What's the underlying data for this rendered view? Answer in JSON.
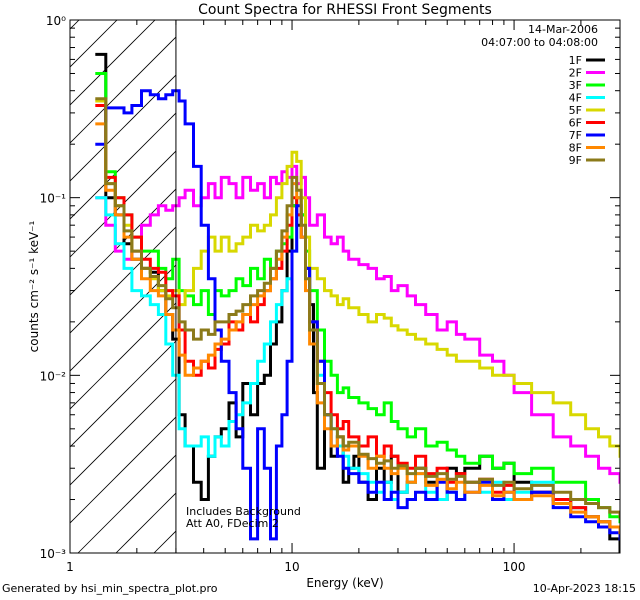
{
  "chart_data": {
    "type": "line",
    "title": "Count Spectra for RHESSI Front Segments",
    "xlabel": "Energy (keV)",
    "ylabel": "counts cm⁻² s⁻¹ keV⁻¹",
    "x_scale": "log",
    "y_scale": "log",
    "xlim": [
      1,
      300
    ],
    "ylim": [
      0.001,
      1
    ],
    "x_ticks": [
      {
        "v": 1,
        "label": "1"
      },
      {
        "v": 10,
        "label": "10"
      },
      {
        "v": 100,
        "label": "100"
      }
    ],
    "y_ticks": [
      {
        "v": 1,
        "label": "10⁰"
      },
      {
        "v": 0.1,
        "label": "10⁻¹"
      },
      {
        "v": 0.01,
        "label": "10⁻²"
      },
      {
        "v": 0.001,
        "label": "10⁻³"
      }
    ],
    "date_text": "14-Mar-2006",
    "time_range_text": "04:07:00 to 04:08:00",
    "legend_placement": "top-right",
    "excluded_region": {
      "x_from": 1,
      "x_to": 3
    },
    "annotations": [
      "Includes Background",
      "Att A0, FDecim 2"
    ],
    "series": [
      {
        "name": "1F",
        "color": "#000000",
        "x": [
          1.3,
          1.45,
          1.6,
          1.75,
          1.9,
          2.1,
          2.3,
          2.5,
          2.7,
          2.9,
          3.1,
          3.3,
          3.6,
          3.9,
          4.2,
          4.5,
          4.8,
          5.2,
          5.6,
          6,
          6.5,
          7,
          7.5,
          8,
          8.5,
          9,
          9.5,
          10,
          10.5,
          11,
          11.5,
          12,
          12.5,
          13,
          14,
          15,
          16,
          17,
          18,
          19,
          20,
          22,
          24,
          26,
          28,
          30,
          33,
          36,
          40,
          45,
          50,
          55,
          60,
          70,
          80,
          90,
          100,
          120,
          150,
          180,
          210,
          240,
          270,
          300
        ],
        "y": [
          0.64,
          0.1,
          0.08,
          0.055,
          0.045,
          0.04,
          0.038,
          0.03,
          0.022,
          0.016,
          0.006,
          0.004,
          0.0025,
          0.002,
          0.0035,
          0.0045,
          0.005,
          0.007,
          0.0045,
          0.009,
          0.006,
          0.009,
          0.01,
          0.015,
          0.02,
          0.03,
          0.05,
          0.09,
          0.07,
          0.08,
          0.04,
          0.025,
          0.008,
          0.003,
          0.006,
          0.0035,
          0.0045,
          0.0025,
          0.003,
          0.0035,
          0.0025,
          0.002,
          0.003,
          0.0025,
          0.0035,
          0.0022,
          0.0025,
          0.003,
          0.0025,
          0.002,
          0.003,
          0.0028,
          0.003,
          0.0035,
          0.003,
          0.0032,
          0.0025,
          0.0022,
          0.002,
          0.0018,
          0.0016,
          0.0015,
          0.0012,
          0.001
        ]
      },
      {
        "name": "2F",
        "color": "#ff00ff",
        "x": [
          1.3,
          1.45,
          1.6,
          1.75,
          1.9,
          2.1,
          2.3,
          2.5,
          2.7,
          2.9,
          3.1,
          3.3,
          3.6,
          3.9,
          4.2,
          4.5,
          4.8,
          5.2,
          5.6,
          6,
          6.5,
          7,
          7.5,
          8,
          8.5,
          9,
          9.5,
          10,
          10.5,
          11,
          11.5,
          12,
          13,
          14,
          15,
          16,
          17,
          18,
          20,
          22,
          24,
          26,
          28,
          30,
          33,
          36,
          40,
          45,
          50,
          55,
          60,
          70,
          80,
          90,
          100,
          120,
          150,
          180,
          210,
          240,
          270,
          300
        ],
        "y": [
          0.1,
          0.07,
          0.05,
          0.045,
          0.05,
          0.07,
          0.08,
          0.09,
          0.085,
          0.09,
          0.1,
          0.11,
          0.09,
          0.1,
          0.12,
          0.1,
          0.13,
          0.12,
          0.1,
          0.13,
          0.11,
          0.12,
          0.1,
          0.13,
          0.12,
          0.14,
          0.13,
          0.15,
          0.12,
          0.13,
          0.1,
          0.07,
          0.08,
          0.06,
          0.055,
          0.06,
          0.05,
          0.045,
          0.042,
          0.04,
          0.035,
          0.036,
          0.03,
          0.032,
          0.028,
          0.025,
          0.022,
          0.018,
          0.02,
          0.017,
          0.016,
          0.013,
          0.012,
          0.01,
          0.008,
          0.006,
          0.0045,
          0.004,
          0.0035,
          0.003,
          0.0028,
          0.0025
        ]
      },
      {
        "name": "3F",
        "color": "#00ff00",
        "x": [
          1.3,
          1.45,
          1.6,
          1.75,
          1.9,
          2.1,
          2.3,
          2.5,
          2.7,
          2.9,
          3.1,
          3.3,
          3.6,
          3.9,
          4.2,
          4.5,
          4.8,
          5.2,
          5.6,
          6,
          6.5,
          7,
          7.5,
          8,
          8.5,
          9,
          9.5,
          10,
          10.5,
          11,
          11.5,
          12,
          13,
          14,
          15,
          16,
          17,
          18,
          20,
          22,
          24,
          26,
          28,
          30,
          33,
          36,
          40,
          45,
          50,
          55,
          60,
          70,
          80,
          90,
          100,
          120,
          150,
          180,
          210,
          240,
          270,
          300
        ],
        "y": [
          0.5,
          0.14,
          0.1,
          0.08,
          0.06,
          0.05,
          0.05,
          0.04,
          0.035,
          0.045,
          0.03,
          0.028,
          0.025,
          0.03,
          0.022,
          0.03,
          0.028,
          0.03,
          0.035,
          0.032,
          0.04,
          0.035,
          0.045,
          0.04,
          0.05,
          0.055,
          0.06,
          0.09,
          0.1,
          0.08,
          0.05,
          0.03,
          0.018,
          0.012,
          0.01,
          0.008,
          0.0085,
          0.0075,
          0.007,
          0.0065,
          0.006,
          0.007,
          0.0055,
          0.005,
          0.0045,
          0.005,
          0.004,
          0.0042,
          0.0038,
          0.0035,
          0.0032,
          0.0035,
          0.003,
          0.0032,
          0.0028,
          0.003,
          0.0025,
          0.0025,
          0.002,
          0.0018,
          0.0016,
          0.0015
        ]
      },
      {
        "name": "4F",
        "color": "#00ffff",
        "x": [
          1.3,
          1.45,
          1.6,
          1.75,
          1.9,
          2.1,
          2.3,
          2.5,
          2.7,
          2.9,
          3.1,
          3.3,
          3.6,
          3.9,
          4.2,
          4.5,
          4.8,
          5.2,
          5.6,
          6,
          6.5,
          7,
          7.5,
          8,
          8.5,
          9,
          9.5,
          10,
          10.5,
          11,
          11.5,
          12,
          13,
          14,
          15,
          16,
          17,
          18,
          20,
          22,
          24,
          26,
          28,
          30,
          33,
          36,
          40,
          45,
          50,
          55,
          60,
          70,
          80,
          90,
          100,
          120,
          150,
          180,
          210,
          240,
          270,
          300
        ],
        "y": [
          0.1,
          0.08,
          0.055,
          0.04,
          0.03,
          0.028,
          0.025,
          0.022,
          0.015,
          0.01,
          0.005,
          0.004,
          0.004,
          0.0045,
          0.0035,
          0.0045,
          0.004,
          0.0055,
          0.006,
          0.007,
          0.009,
          0.012,
          0.015,
          0.02,
          0.025,
          0.03,
          0.035,
          0.05,
          0.08,
          0.06,
          0.04,
          0.02,
          0.01,
          0.006,
          0.005,
          0.004,
          0.0035,
          0.003,
          0.0028,
          0.0025,
          0.0022,
          0.0025,
          0.002,
          0.0022,
          0.0025,
          0.0028,
          0.0022,
          0.002,
          0.0022,
          0.002,
          0.0025,
          0.0022,
          0.0025,
          0.002,
          0.0022,
          0.0025,
          0.002,
          0.0018,
          0.0016,
          0.0015,
          0.0014,
          0.0013
        ]
      },
      {
        "name": "5F",
        "color": "#d8d800",
        "x": [
          1.3,
          1.45,
          1.6,
          1.75,
          1.9,
          2.1,
          2.3,
          2.5,
          2.7,
          2.9,
          3.1,
          3.3,
          3.6,
          3.9,
          4.2,
          4.5,
          4.8,
          5.2,
          5.6,
          6,
          6.5,
          7,
          7.5,
          8,
          8.5,
          9,
          9.5,
          10,
          10.5,
          11,
          11.5,
          12,
          13,
          14,
          15,
          16,
          17,
          18,
          20,
          22,
          24,
          26,
          28,
          30,
          33,
          36,
          40,
          45,
          50,
          55,
          60,
          70,
          80,
          90,
          100,
          120,
          150,
          180,
          210,
          240,
          270,
          300
        ],
        "y": [
          0.35,
          0.12,
          0.09,
          0.07,
          0.05,
          0.04,
          0.035,
          0.03,
          0.028,
          0.03,
          0.025,
          0.03,
          0.04,
          0.05,
          0.06,
          0.05,
          0.06,
          0.05,
          0.055,
          0.06,
          0.07,
          0.065,
          0.07,
          0.08,
          0.1,
          0.12,
          0.15,
          0.18,
          0.16,
          0.1,
          0.06,
          0.04,
          0.035,
          0.03,
          0.028,
          0.025,
          0.027,
          0.024,
          0.022,
          0.02,
          0.022,
          0.021,
          0.019,
          0.018,
          0.017,
          0.016,
          0.015,
          0.014,
          0.013,
          0.012,
          0.012,
          0.011,
          0.01,
          0.01,
          0.009,
          0.008,
          0.007,
          0.006,
          0.005,
          0.0045,
          0.004,
          0.0035
        ]
      },
      {
        "name": "6F",
        "color": "#ff0000",
        "x": [
          1.3,
          1.45,
          1.6,
          1.75,
          1.9,
          2.1,
          2.3,
          2.5,
          2.7,
          2.9,
          3.1,
          3.3,
          3.6,
          3.9,
          4.2,
          4.5,
          4.8,
          5.2,
          5.6,
          6,
          6.5,
          7,
          7.5,
          8,
          8.5,
          9,
          9.5,
          10,
          10.5,
          11,
          11.5,
          12,
          13,
          14,
          15,
          16,
          17,
          18,
          20,
          22,
          24,
          26,
          28,
          30,
          33,
          36,
          40,
          45,
          50,
          55,
          60,
          70,
          80,
          90,
          100,
          120,
          150,
          180,
          210,
          240,
          270,
          300
        ],
        "y": [
          0.33,
          0.13,
          0.1,
          0.08,
          0.06,
          0.045,
          0.04,
          0.038,
          0.03,
          0.028,
          0.018,
          0.012,
          0.01,
          0.012,
          0.011,
          0.014,
          0.015,
          0.02,
          0.018,
          0.022,
          0.02,
          0.025,
          0.03,
          0.035,
          0.04,
          0.05,
          0.07,
          0.1,
          0.08,
          0.06,
          0.04,
          0.02,
          0.012,
          0.008,
          0.006,
          0.005,
          0.0055,
          0.0045,
          0.004,
          0.0045,
          0.0035,
          0.004,
          0.0035,
          0.0032,
          0.003,
          0.0035,
          0.0028,
          0.003,
          0.0025,
          0.0028,
          0.0025,
          0.0026,
          0.0022,
          0.0024,
          0.002,
          0.0022,
          0.002,
          0.0018,
          0.0016,
          0.0015,
          0.0014,
          0.0013
        ]
      },
      {
        "name": "7F",
        "color": "#0000ff",
        "x": [
          1.3,
          1.45,
          1.6,
          1.75,
          1.9,
          2.1,
          2.3,
          2.5,
          2.7,
          2.9,
          3.1,
          3.3,
          3.6,
          3.9,
          4.2,
          4.5,
          4.8,
          5.2,
          5.6,
          6,
          6.5,
          7,
          7.5,
          8,
          8.5,
          9,
          9.5,
          10,
          10.5,
          11,
          11.5,
          12,
          13,
          14,
          15,
          16,
          17,
          18,
          20,
          22,
          24,
          26,
          28,
          30,
          33,
          36,
          40,
          45,
          50,
          55,
          60,
          70,
          80,
          90,
          100,
          120,
          150,
          180,
          210,
          240,
          270,
          300
        ],
        "y": [
          0.2,
          0.32,
          0.32,
          0.3,
          0.33,
          0.4,
          0.38,
          0.36,
          0.38,
          0.4,
          0.35,
          0.26,
          0.15,
          0.07,
          0.035,
          0.018,
          0.012,
          0.008,
          0.005,
          0.003,
          0.0012,
          0.005,
          0.003,
          0.0012,
          0.004,
          0.006,
          0.012,
          0.05,
          0.09,
          0.06,
          0.04,
          0.02,
          0.012,
          0.006,
          0.004,
          0.0035,
          0.003,
          0.0028,
          0.0025,
          0.0022,
          0.0025,
          0.002,
          0.0022,
          0.0018,
          0.002,
          0.0022,
          0.002,
          0.0025,
          0.0022,
          0.002,
          0.0022,
          0.0025,
          0.002,
          0.0022,
          0.002,
          0.0022,
          0.0018,
          0.0016,
          0.0015,
          0.0014,
          0.0013,
          0.0012
        ]
      },
      {
        "name": "8F",
        "color": "#ff8800",
        "x": [
          1.3,
          1.45,
          1.6,
          1.75,
          1.9,
          2.1,
          2.3,
          2.5,
          2.7,
          2.9,
          3.1,
          3.3,
          3.6,
          3.9,
          4.2,
          4.5,
          4.8,
          5.2,
          5.6,
          6,
          6.5,
          7,
          7.5,
          8,
          8.5,
          9,
          9.5,
          10,
          10.5,
          11,
          11.5,
          12,
          13,
          14,
          15,
          16,
          17,
          18,
          20,
          22,
          24,
          26,
          28,
          30,
          33,
          36,
          40,
          45,
          50,
          55,
          60,
          70,
          80,
          90,
          100,
          120,
          150,
          180,
          210,
          240,
          270,
          300
        ],
        "y": [
          0.26,
          0.11,
          0.08,
          0.06,
          0.045,
          0.035,
          0.03,
          0.028,
          0.022,
          0.018,
          0.013,
          0.01,
          0.011,
          0.012,
          0.013,
          0.015,
          0.016,
          0.018,
          0.02,
          0.022,
          0.025,
          0.028,
          0.03,
          0.035,
          0.045,
          0.06,
          0.08,
          0.12,
          0.1,
          0.06,
          0.03,
          0.015,
          0.007,
          0.005,
          0.004,
          0.0045,
          0.0038,
          0.004,
          0.0035,
          0.003,
          0.0035,
          0.003,
          0.0028,
          0.003,
          0.0025,
          0.0028,
          0.0024,
          0.0026,
          0.0023,
          0.0025,
          0.0022,
          0.0024,
          0.0021,
          0.0022,
          0.002,
          0.0021,
          0.0019,
          0.0017,
          0.0016,
          0.0015,
          0.0014,
          0.0013
        ]
      },
      {
        "name": "9F",
        "color": "#8b7a1a",
        "x": [
          1.3,
          1.45,
          1.6,
          1.75,
          1.9,
          2.1,
          2.3,
          2.5,
          2.7,
          2.9,
          3.1,
          3.3,
          3.6,
          3.9,
          4.2,
          4.5,
          4.8,
          5.2,
          5.6,
          6,
          6.5,
          7,
          7.5,
          8,
          8.5,
          9,
          9.5,
          10,
          10.5,
          11,
          11.5,
          12,
          13,
          14,
          15,
          16,
          17,
          18,
          20,
          22,
          24,
          26,
          28,
          30,
          33,
          36,
          40,
          45,
          50,
          55,
          60,
          70,
          80,
          90,
          100,
          120,
          150,
          180,
          210,
          240,
          270,
          300
        ],
        "y": [
          0.36,
          0.12,
          0.09,
          0.065,
          0.05,
          0.04,
          0.036,
          0.032,
          0.027,
          0.024,
          0.02,
          0.018,
          0.016,
          0.018,
          0.017,
          0.02,
          0.02,
          0.022,
          0.023,
          0.025,
          0.028,
          0.03,
          0.033,
          0.04,
          0.05,
          0.065,
          0.09,
          0.13,
          0.11,
          0.07,
          0.035,
          0.018,
          0.009,
          0.006,
          0.005,
          0.0045,
          0.004,
          0.0042,
          0.0036,
          0.0034,
          0.0032,
          0.0033,
          0.003,
          0.0031,
          0.0028,
          0.003,
          0.0027,
          0.0028,
          0.0026,
          0.0027,
          0.0025,
          0.0026,
          0.0024,
          0.0025,
          0.0023,
          0.0024,
          0.0022,
          0.002,
          0.0019,
          0.0018,
          0.0017,
          0.0016
        ]
      }
    ]
  },
  "footer": {
    "generated_by": "Generated by hsi_min_spectra_plot.pro",
    "date": "10-Apr-2023 18:15"
  }
}
